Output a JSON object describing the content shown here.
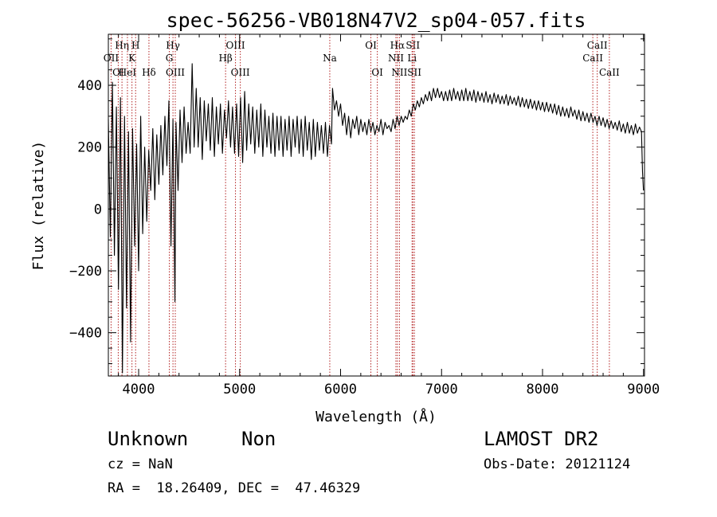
{
  "chart_data": {
    "type": "line",
    "title": "spec-56256-VB018N47V2_sp04-057.fits",
    "xlabel": "Wavelength (Å)",
    "ylabel": "Flux (relative)",
    "xlim": [
      3700,
      9010
    ],
    "ylim": [
      -540,
      565
    ],
    "xticks": [
      4000,
      5000,
      6000,
      7000,
      8000,
      9000
    ],
    "yticks": [
      -400,
      -200,
      0,
      200,
      400
    ],
    "grid": false,
    "line_color": "#000000",
    "marker_color": "#b22222",
    "series": [
      {
        "points": [
          [
            3700,
            290
          ],
          [
            3720,
            -90
          ],
          [
            3740,
            410
          ],
          [
            3760,
            -150
          ],
          [
            3780,
            330
          ],
          [
            3800,
            -260
          ],
          [
            3820,
            360
          ],
          [
            3840,
            -530
          ],
          [
            3860,
            300
          ],
          [
            3880,
            -320
          ],
          [
            3900,
            250
          ],
          [
            3920,
            -430
          ],
          [
            3940,
            260
          ],
          [
            3960,
            -120
          ],
          [
            3980,
            210
          ],
          [
            4000,
            -200
          ],
          [
            4020,
            300
          ],
          [
            4040,
            -80
          ],
          [
            4060,
            200
          ],
          [
            4080,
            -40
          ],
          [
            4100,
            190
          ],
          [
            4120,
            60
          ],
          [
            4140,
            260
          ],
          [
            4160,
            30
          ],
          [
            4180,
            240
          ],
          [
            4200,
            80
          ],
          [
            4220,
            270
          ],
          [
            4240,
            110
          ],
          [
            4260,
            300
          ],
          [
            4280,
            140
          ],
          [
            4300,
            350
          ],
          [
            4320,
            -120
          ],
          [
            4340,
            290
          ],
          [
            4360,
            -300
          ],
          [
            4370,
            280
          ],
          [
            4390,
            60
          ],
          [
            4410,
            320
          ],
          [
            4430,
            150
          ],
          [
            4450,
            330
          ],
          [
            4470,
            180
          ],
          [
            4490,
            280
          ],
          [
            4510,
            180
          ],
          [
            4530,
            470
          ],
          [
            4550,
            200
          ],
          [
            4570,
            390
          ],
          [
            4590,
            200
          ],
          [
            4610,
            360
          ],
          [
            4630,
            160
          ],
          [
            4650,
            350
          ],
          [
            4670,
            220
          ],
          [
            4690,
            340
          ],
          [
            4710,
            190
          ],
          [
            4730,
            360
          ],
          [
            4750,
            170
          ],
          [
            4770,
            330
          ],
          [
            4790,
            210
          ],
          [
            4810,
            340
          ],
          [
            4830,
            180
          ],
          [
            4850,
            320
          ],
          [
            4870,
            230
          ],
          [
            4890,
            350
          ],
          [
            4910,
            200
          ],
          [
            4930,
            330
          ],
          [
            4950,
            180
          ],
          [
            4970,
            340
          ],
          [
            4990,
            170
          ],
          [
            5010,
            360
          ],
          [
            5030,
            150
          ],
          [
            5050,
            380
          ],
          [
            5070,
            190
          ],
          [
            5090,
            340
          ],
          [
            5110,
            210
          ],
          [
            5130,
            330
          ],
          [
            5150,
            180
          ],
          [
            5170,
            320
          ],
          [
            5190,
            200
          ],
          [
            5210,
            340
          ],
          [
            5230,
            170
          ],
          [
            5250,
            320
          ],
          [
            5270,
            200
          ],
          [
            5290,
            300
          ],
          [
            5310,
            180
          ],
          [
            5330,
            310
          ],
          [
            5350,
            170
          ],
          [
            5370,
            300
          ],
          [
            5390,
            190
          ],
          [
            5410,
            300
          ],
          [
            5430,
            170
          ],
          [
            5450,
            290
          ],
          [
            5470,
            190
          ],
          [
            5490,
            300
          ],
          [
            5510,
            170
          ],
          [
            5530,
            290
          ],
          [
            5550,
            200
          ],
          [
            5570,
            300
          ],
          [
            5590,
            180
          ],
          [
            5610,
            290
          ],
          [
            5630,
            170
          ],
          [
            5650,
            300
          ],
          [
            5670,
            190
          ],
          [
            5690,
            280
          ],
          [
            5710,
            160
          ],
          [
            5730,
            290
          ],
          [
            5750,
            170
          ],
          [
            5770,
            280
          ],
          [
            5790,
            190
          ],
          [
            5810,
            270
          ],
          [
            5830,
            180
          ],
          [
            5850,
            280
          ],
          [
            5870,
            170
          ],
          [
            5890,
            270
          ],
          [
            5910,
            210
          ],
          [
            5920,
            390
          ],
          [
            5940,
            320
          ],
          [
            5960,
            350
          ],
          [
            5980,
            300
          ],
          [
            6000,
            340
          ],
          [
            6020,
            270
          ],
          [
            6040,
            310
          ],
          [
            6060,
            240
          ],
          [
            6080,
            300
          ],
          [
            6100,
            230
          ],
          [
            6120,
            290
          ],
          [
            6140,
            260
          ],
          [
            6160,
            300
          ],
          [
            6180,
            240
          ],
          [
            6200,
            290
          ],
          [
            6220,
            250
          ],
          [
            6240,
            280
          ],
          [
            6260,
            240
          ],
          [
            6280,
            290
          ],
          [
            6300,
            250
          ],
          [
            6320,
            280
          ],
          [
            6340,
            240
          ],
          [
            6360,
            270
          ],
          [
            6380,
            250
          ],
          [
            6400,
            290
          ],
          [
            6420,
            240
          ],
          [
            6440,
            280
          ],
          [
            6460,
            260
          ],
          [
            6480,
            270
          ],
          [
            6500,
            250
          ],
          [
            6520,
            290
          ],
          [
            6540,
            260
          ],
          [
            6560,
            300
          ],
          [
            6580,
            270
          ],
          [
            6600,
            300
          ],
          [
            6620,
            280
          ],
          [
            6640,
            300
          ],
          [
            6660,
            290
          ],
          [
            6680,
            320
          ],
          [
            6700,
            300
          ],
          [
            6720,
            340
          ],
          [
            6740,
            320
          ],
          [
            6760,
            350
          ],
          [
            6780,
            330
          ],
          [
            6800,
            360
          ],
          [
            6820,
            340
          ],
          [
            6840,
            370
          ],
          [
            6860,
            350
          ],
          [
            6880,
            380
          ],
          [
            6900,
            350
          ],
          [
            6920,
            390
          ],
          [
            6940,
            360
          ],
          [
            6960,
            390
          ],
          [
            6980,
            360
          ],
          [
            7000,
            380
          ],
          [
            7020,
            350
          ],
          [
            7040,
            380
          ],
          [
            7060,
            350
          ],
          [
            7080,
            385
          ],
          [
            7100,
            350
          ],
          [
            7120,
            390
          ],
          [
            7140,
            355
          ],
          [
            7160,
            380
          ],
          [
            7180,
            350
          ],
          [
            7200,
            385
          ],
          [
            7220,
            350
          ],
          [
            7240,
            390
          ],
          [
            7260,
            350
          ],
          [
            7280,
            380
          ],
          [
            7300,
            350
          ],
          [
            7320,
            385
          ],
          [
            7340,
            345
          ],
          [
            7360,
            380
          ],
          [
            7380,
            350
          ],
          [
            7400,
            375
          ],
          [
            7420,
            345
          ],
          [
            7440,
            380
          ],
          [
            7460,
            345
          ],
          [
            7480,
            370
          ],
          [
            7500,
            340
          ],
          [
            7520,
            375
          ],
          [
            7540,
            345
          ],
          [
            7560,
            370
          ],
          [
            7580,
            340
          ],
          [
            7600,
            365
          ],
          [
            7620,
            340
          ],
          [
            7640,
            370
          ],
          [
            7660,
            335
          ],
          [
            7680,
            365
          ],
          [
            7700,
            340
          ],
          [
            7720,
            360
          ],
          [
            7740,
            335
          ],
          [
            7760,
            365
          ],
          [
            7780,
            330
          ],
          [
            7800,
            360
          ],
          [
            7820,
            330
          ],
          [
            7840,
            355
          ],
          [
            7860,
            325
          ],
          [
            7880,
            355
          ],
          [
            7900,
            325
          ],
          [
            7920,
            350
          ],
          [
            7940,
            320
          ],
          [
            7960,
            350
          ],
          [
            7980,
            320
          ],
          [
            8000,
            345
          ],
          [
            8020,
            315
          ],
          [
            8040,
            345
          ],
          [
            8060,
            315
          ],
          [
            8080,
            340
          ],
          [
            8100,
            310
          ],
          [
            8120,
            340
          ],
          [
            8140,
            305
          ],
          [
            8160,
            335
          ],
          [
            8180,
            300
          ],
          [
            8200,
            330
          ],
          [
            8220,
            300
          ],
          [
            8240,
            325
          ],
          [
            8260,
            295
          ],
          [
            8280,
            330
          ],
          [
            8300,
            300
          ],
          [
            8320,
            320
          ],
          [
            8340,
            290
          ],
          [
            8360,
            320
          ],
          [
            8380,
            285
          ],
          [
            8400,
            315
          ],
          [
            8420,
            285
          ],
          [
            8440,
            310
          ],
          [
            8460,
            280
          ],
          [
            8480,
            310
          ],
          [
            8500,
            280
          ],
          [
            8520,
            300
          ],
          [
            8540,
            270
          ],
          [
            8560,
            300
          ],
          [
            8580,
            270
          ],
          [
            8600,
            295
          ],
          [
            8620,
            265
          ],
          [
            8640,
            290
          ],
          [
            8660,
            260
          ],
          [
            8680,
            285
          ],
          [
            8700,
            260
          ],
          [
            8720,
            280
          ],
          [
            8740,
            255
          ],
          [
            8760,
            285
          ],
          [
            8780,
            250
          ],
          [
            8800,
            275
          ],
          [
            8820,
            245
          ],
          [
            8840,
            280
          ],
          [
            8860,
            245
          ],
          [
            8880,
            270
          ],
          [
            8900,
            240
          ],
          [
            8920,
            275
          ],
          [
            8940,
            245
          ],
          [
            8960,
            265
          ],
          [
            8980,
            250
          ],
          [
            8990,
            120
          ],
          [
            9000,
            60
          ]
        ]
      }
    ],
    "line_markers": [
      {
        "wavelength": 3727,
        "row": 2,
        "label": "OII"
      },
      {
        "wavelength": 3798,
        "row": 3,
        "label": "OI"
      },
      {
        "wavelength": 3835,
        "row": 1,
        "label": "Hη"
      },
      {
        "wavelength": 3889,
        "row": 3,
        "label": "HeI"
      },
      {
        "wavelength": 3934,
        "row": 2,
        "label": "K"
      },
      {
        "wavelength": 3970,
        "row": 1,
        "label": "H"
      },
      {
        "wavelength": 4102,
        "row": 3,
        "label": "Hδ"
      },
      {
        "wavelength": 4304,
        "row": 2,
        "label": "G"
      },
      {
        "wavelength": 4340,
        "row": 1,
        "label": "Hγ"
      },
      {
        "wavelength": 4363,
        "row": 3,
        "label": "OIII"
      },
      {
        "wavelength": 4861,
        "row": 2,
        "label": "Hβ"
      },
      {
        "wavelength": 4959,
        "row": 1,
        "label": "OIII"
      },
      {
        "wavelength": 5007,
        "row": 3,
        "label": "OIII"
      },
      {
        "wavelength": 5893,
        "row": 2,
        "label": "Na"
      },
      {
        "wavelength": 6300,
        "row": 1,
        "label": "OI"
      },
      {
        "wavelength": 6364,
        "row": 3,
        "label": "OI"
      },
      {
        "wavelength": 6548,
        "row": 2,
        "label": "NII"
      },
      {
        "wavelength": 6563,
        "row": 1,
        "label": "Hα"
      },
      {
        "wavelength": 6583,
        "row": 3,
        "label": "NII"
      },
      {
        "wavelength": 6708,
        "row": 2,
        "label": "Li"
      },
      {
        "wavelength": 6716,
        "row": 1,
        "label": "SII"
      },
      {
        "wavelength": 6731,
        "row": 3,
        "label": "SII"
      },
      {
        "wavelength": 8498,
        "row": 2,
        "label": "CaII"
      },
      {
        "wavelength": 8542,
        "row": 1,
        "label": "CaII"
      },
      {
        "wavelength": 8662,
        "row": 3,
        "label": "CaII"
      }
    ]
  },
  "info": {
    "class_label": "Unknown",
    "subclass_label": "Non",
    "survey": "LAMOST DR2",
    "redshift": "cz = NaN",
    "obs_date": "Obs-Date: 20121124",
    "coords": "RA =  18.26409, DEC =  47.46329"
  }
}
